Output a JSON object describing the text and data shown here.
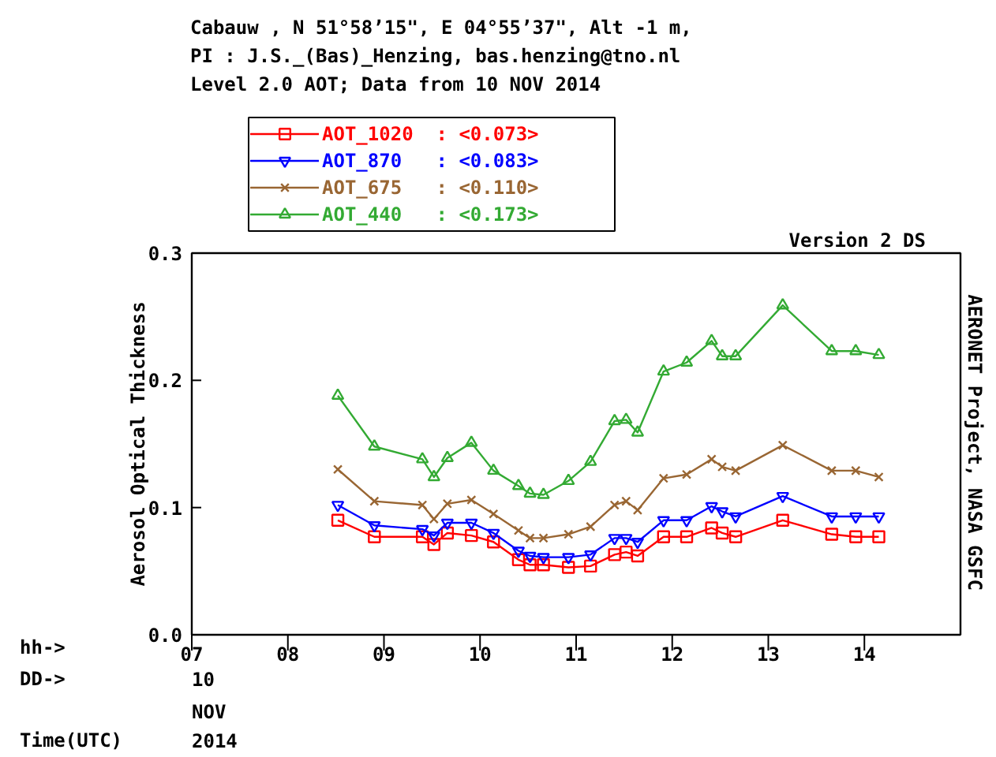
{
  "chart_data": {
    "type": "line",
    "title": "Cabauw , N 51°58’15\", E 04°55’37\", Alt -1 m,",
    "subtitle": "PI : J.S._(Bas)_Henzing, bas.henzing@tno.nl\nLevel 2.0 AOT; Data from 10 NOV 2014",
    "ylabel": "Aerosol Optical Thickness",
    "annotations": [
      "Version 2 DS",
      "AERONET Project, NASA GSFC",
      "hh->",
      "DD->",
      "10",
      "NOV",
      "2014",
      "Time(UTC)"
    ],
    "x": [
      8.52,
      8.9,
      9.4,
      9.52,
      9.66,
      9.91,
      10.14,
      10.4,
      10.52,
      10.66,
      10.92,
      11.15,
      11.4,
      11.52,
      11.64,
      11.91,
      12.15,
      12.41,
      12.52,
      12.66,
      13.15,
      13.66,
      13.91,
      14.15
    ],
    "series": [
      {
        "name": "AOT_1020  : <0.073>",
        "color": "#ff0000",
        "marker": "square",
        "values": [
          0.09,
          0.077,
          0.077,
          0.071,
          0.08,
          0.078,
          0.073,
          0.059,
          0.055,
          0.055,
          0.053,
          0.054,
          0.063,
          0.065,
          0.062,
          0.077,
          0.077,
          0.084,
          0.08,
          0.077,
          0.09,
          0.079,
          0.077,
          0.077
        ]
      },
      {
        "name": "AOT_870   : <0.083>",
        "color": "#0000ff",
        "marker": "triangle_down",
        "values": [
          0.102,
          0.086,
          0.083,
          0.078,
          0.088,
          0.088,
          0.08,
          0.066,
          0.062,
          0.061,
          0.061,
          0.063,
          0.076,
          0.076,
          0.073,
          0.09,
          0.09,
          0.101,
          0.097,
          0.093,
          0.109,
          0.093,
          0.093,
          0.093
        ]
      },
      {
        "name": "AOT_675   : <0.110>",
        "color": "#996633",
        "marker": "cross",
        "values": [
          0.13,
          0.105,
          0.102,
          0.091,
          0.103,
          0.106,
          0.095,
          0.082,
          0.076,
          0.076,
          0.079,
          0.085,
          0.102,
          0.105,
          0.098,
          0.123,
          0.126,
          0.138,
          0.132,
          0.129,
          0.149,
          0.129,
          0.129,
          0.124
        ]
      },
      {
        "name": "AOT_440   : <0.173>",
        "color": "#33aa33",
        "marker": "triangle",
        "values": [
          0.188,
          0.148,
          0.138,
          0.124,
          0.139,
          0.151,
          0.129,
          0.117,
          0.111,
          0.11,
          0.121,
          0.136,
          0.168,
          0.169,
          0.159,
          0.207,
          0.214,
          0.231,
          0.219,
          0.219,
          0.259,
          0.223,
          0.223,
          0.22
        ]
      }
    ],
    "xlim": [
      7,
      15
    ],
    "ylim": [
      0,
      0.3
    ],
    "xticks": [
      {
        "value": 7,
        "label": "07"
      },
      {
        "value": 8,
        "label": "08"
      },
      {
        "value": 9,
        "label": "09"
      },
      {
        "value": 10,
        "label": "10"
      },
      {
        "value": 11,
        "label": "11"
      },
      {
        "value": 12,
        "label": "12"
      },
      {
        "value": 13,
        "label": "13"
      },
      {
        "value": 14,
        "label": "14"
      }
    ],
    "yticks": [
      {
        "value": 0,
        "label": "0.0"
      },
      {
        "value": 0.1,
        "label": "0.1"
      },
      {
        "value": 0.2,
        "label": "0.2"
      },
      {
        "value": 0.3,
        "label": "0.3"
      }
    ],
    "grid": false,
    "legend": "top left"
  }
}
